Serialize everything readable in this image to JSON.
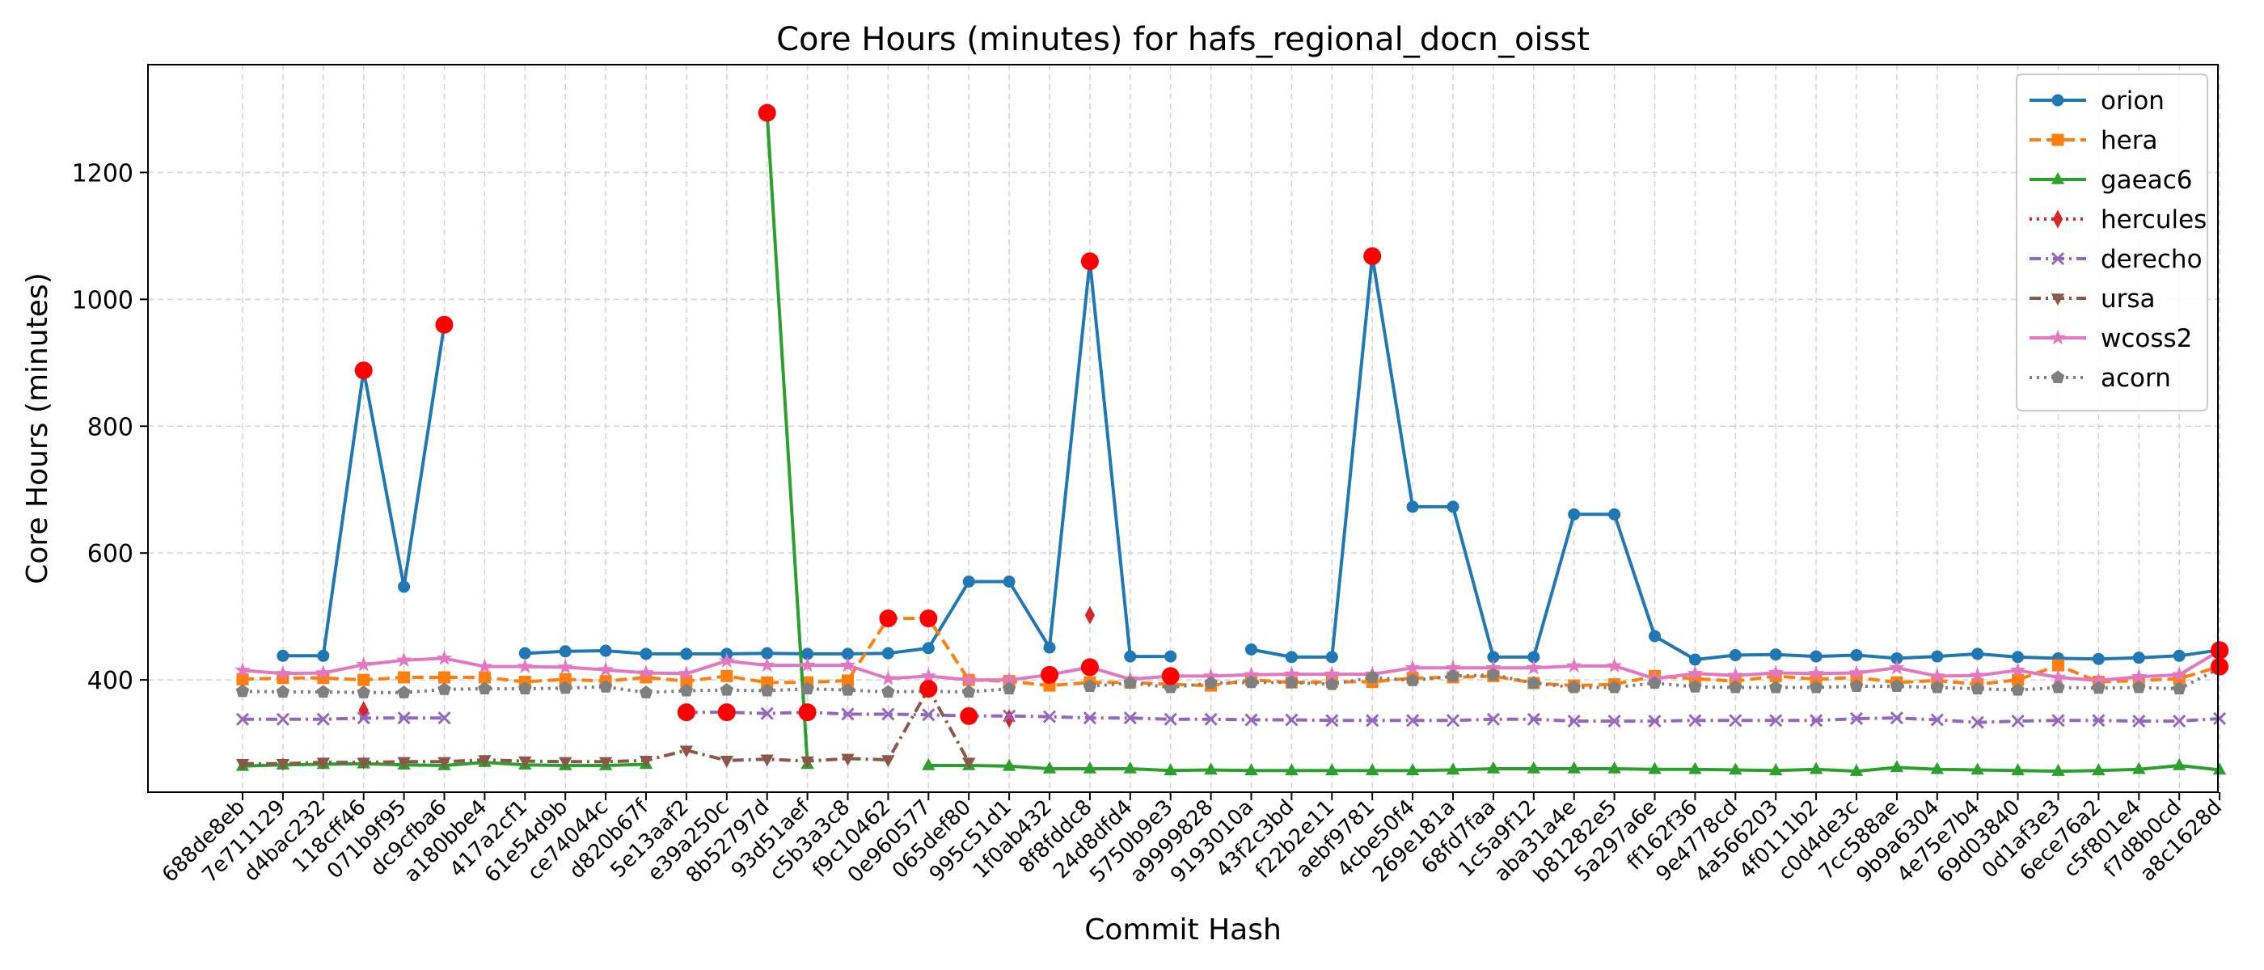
{
  "chart_data": {
    "type": "line",
    "title": "Core Hours (minutes) for hafs_regional_docn_oisst",
    "xlabel": "Commit Hash",
    "ylabel": "Core Hours (minutes)",
    "ylim": [
      223,
      1370
    ],
    "yticks": [
      400,
      600,
      800,
      1000,
      1200
    ],
    "grid": true,
    "legend_position": "top-right",
    "categories": [
      "688de8eb",
      "7e711129",
      "d4bac232",
      "118cff46",
      "071b9f95",
      "dc9cfba6",
      "a180bbe4",
      "417a2cf1",
      "61e54d9b",
      "ce74044c",
      "d820b67f",
      "5e13aaf2",
      "e39a250c",
      "8b52797d",
      "93d51aef",
      "c5b3a3c8",
      "f9c10462",
      "0e960577",
      "065def80",
      "995c51d1",
      "1f0ab432",
      "8f8fddc8",
      "24d8dfd4",
      "5750b9e3",
      "a9999828",
      "9193010a",
      "43f2c3bd",
      "f22b2e11",
      "aebf9781",
      "4cbe50f4",
      "269e181a",
      "68fd7faa",
      "1c5a9f12",
      "aba31a4e",
      "b81282e5",
      "5a297a6e",
      "ff162f36",
      "9e4778cd",
      "4a566203",
      "4f0111b2",
      "c0d4de3c",
      "7cc588ae",
      "9b9a6304",
      "4e75e7b4",
      "69d03840",
      "0d1af3e3",
      "6ece76a2",
      "c5f801e4",
      "f7d8b0cd",
      "a8c1628d"
    ],
    "series": [
      {
        "name": "orion",
        "color": "#1f77b4",
        "dash": "",
        "marker": "circle",
        "values": [
          null,
          438,
          438,
          888,
          547,
          960,
          null,
          442,
          445,
          446,
          441,
          441,
          441,
          442,
          441,
          441,
          442,
          450,
          555,
          555,
          451,
          1060,
          437,
          437,
          null,
          448,
          436,
          436,
          1068,
          673,
          673,
          436,
          436,
          661,
          661,
          469,
          432,
          439,
          440,
          437,
          439,
          434,
          437,
          441,
          436,
          434,
          433,
          435,
          438,
          447
        ]
      },
      {
        "name": "hera",
        "color": "#ff7f0e",
        "dash": "14,7",
        "marker": "square",
        "values": [
          401,
          403,
          403,
          400,
          404,
          404,
          404,
          397,
          401,
          398,
          404,
          398,
          406,
          396,
          396,
          399,
          497,
          497,
          400,
          398,
          391,
          396,
          396,
          393,
          391,
          400,
          396,
          397,
          397,
          403,
          404,
          406,
          395,
          391,
          393,
          406,
          402,
          398,
          406,
          401,
          404,
          396,
          399,
          393,
          400,
          423,
          397,
          399,
          402,
          421
        ]
      },
      {
        "name": "gaeac6",
        "color": "#2ca02c",
        "dash": "",
        "marker": "triangle",
        "values": [
          264,
          266,
          267,
          268,
          266,
          265,
          270,
          266,
          265,
          265,
          267,
          null,
          null,
          1294,
          267,
          null,
          null,
          265,
          265,
          264,
          260,
          260,
          260,
          257,
          258,
          257,
          257,
          257,
          257,
          257,
          258,
          260,
          260,
          260,
          260,
          259,
          259,
          258,
          257,
          259,
          256,
          262,
          259,
          258,
          257,
          256,
          257,
          259,
          265,
          258
        ]
      },
      {
        "name": "hercules",
        "color": "#d62728",
        "dash": "3,6",
        "marker": "diamond",
        "values": [
          null,
          null,
          null,
          352,
          null,
          null,
          null,
          null,
          null,
          null,
          null,
          null,
          null,
          null,
          null,
          null,
          null,
          null,
          null,
          339,
          null,
          502,
          null,
          null,
          null,
          null,
          null,
          null,
          null,
          null,
          null,
          null,
          null,
          null,
          null,
          null,
          null,
          null,
          null,
          null,
          null,
          null,
          null,
          null,
          null,
          null,
          null,
          null,
          null,
          null
        ]
      },
      {
        "name": "derecho",
        "color": "#9467bd",
        "dash": "14,6,3,6",
        "marker": "x",
        "values": [
          338,
          338,
          338,
          340,
          340,
          340,
          null,
          null,
          null,
          null,
          null,
          349,
          349,
          347,
          349,
          346,
          346,
          345,
          343,
          343,
          342,
          340,
          340,
          338,
          338,
          337,
          337,
          336,
          336,
          336,
          336,
          338,
          338,
          335,
          335,
          335,
          336,
          336,
          336,
          336,
          339,
          340,
          337,
          333,
          335,
          336,
          336,
          335,
          335,
          339
        ]
      },
      {
        "name": "ursa",
        "color": "#8c564b",
        "dash": "14,6,3,6",
        "marker": "tri-down",
        "values": [
          268,
          268,
          270,
          270,
          271,
          271,
          274,
          272,
          271,
          271,
          273,
          289,
          273,
          275,
          272,
          276,
          274,
          386,
          270,
          null,
          null,
          null,
          null,
          null,
          null,
          null,
          null,
          null,
          null,
          null,
          null,
          null,
          null,
          null,
          null,
          null,
          null,
          null,
          null,
          null,
          null,
          null,
          null,
          null,
          null,
          null,
          null,
          null,
          null,
          null
        ]
      },
      {
        "name": "wcoss2",
        "color": "#e377c2",
        "dash": "",
        "marker": "star",
        "values": [
          415,
          410,
          411,
          424,
          431,
          434,
          421,
          421,
          420,
          416,
          411,
          410,
          430,
          423,
          423,
          423,
          402,
          406,
          400,
          400,
          408,
          420,
          401,
          406,
          406,
          408,
          409,
          409,
          409,
          419,
          419,
          419,
          419,
          422,
          422,
          402,
          410,
          407,
          411,
          410,
          411,
          419,
          406,
          407,
          415,
          404,
          399,
          405,
          408,
          446
        ]
      },
      {
        "name": "acorn",
        "color": "#7f7f7f",
        "dash": "3,6",
        "marker": "pentagon",
        "values": [
          382,
          381,
          381,
          380,
          380,
          385,
          386,
          386,
          387,
          389,
          380,
          383,
          384,
          383,
          386,
          384,
          381,
          382,
          381,
          386,
          null,
          390,
          395,
          388,
          395,
          396,
          396,
          393,
          404,
          399,
          406,
          408,
          395,
          388,
          388,
          395,
          389,
          388,
          388,
          388,
          390,
          390,
          388,
          386,
          384,
          388,
          387,
          388,
          386,
          418
        ]
      }
    ],
    "outliers": [
      {
        "series": "orion",
        "index": 3
      },
      {
        "series": "orion",
        "index": 5
      },
      {
        "series": "orion",
        "index": 21
      },
      {
        "series": "orion",
        "index": 28
      },
      {
        "series": "orion",
        "index": 49
      },
      {
        "series": "hera",
        "index": 16
      },
      {
        "series": "hera",
        "index": 17
      },
      {
        "series": "hera",
        "index": 49
      },
      {
        "series": "gaeac6",
        "index": 13
      },
      {
        "series": "derecho",
        "index": 11
      },
      {
        "series": "derecho",
        "index": 12
      },
      {
        "series": "derecho",
        "index": 14
      },
      {
        "series": "derecho",
        "index": 18
      },
      {
        "series": "ursa",
        "index": 17
      },
      {
        "series": "wcoss2",
        "index": 20
      },
      {
        "series": "wcoss2",
        "index": 21
      },
      {
        "series": "wcoss2",
        "index": 23
      },
      {
        "series": "wcoss2",
        "index": 49
      }
    ],
    "outlier_color": "#ff0000"
  }
}
